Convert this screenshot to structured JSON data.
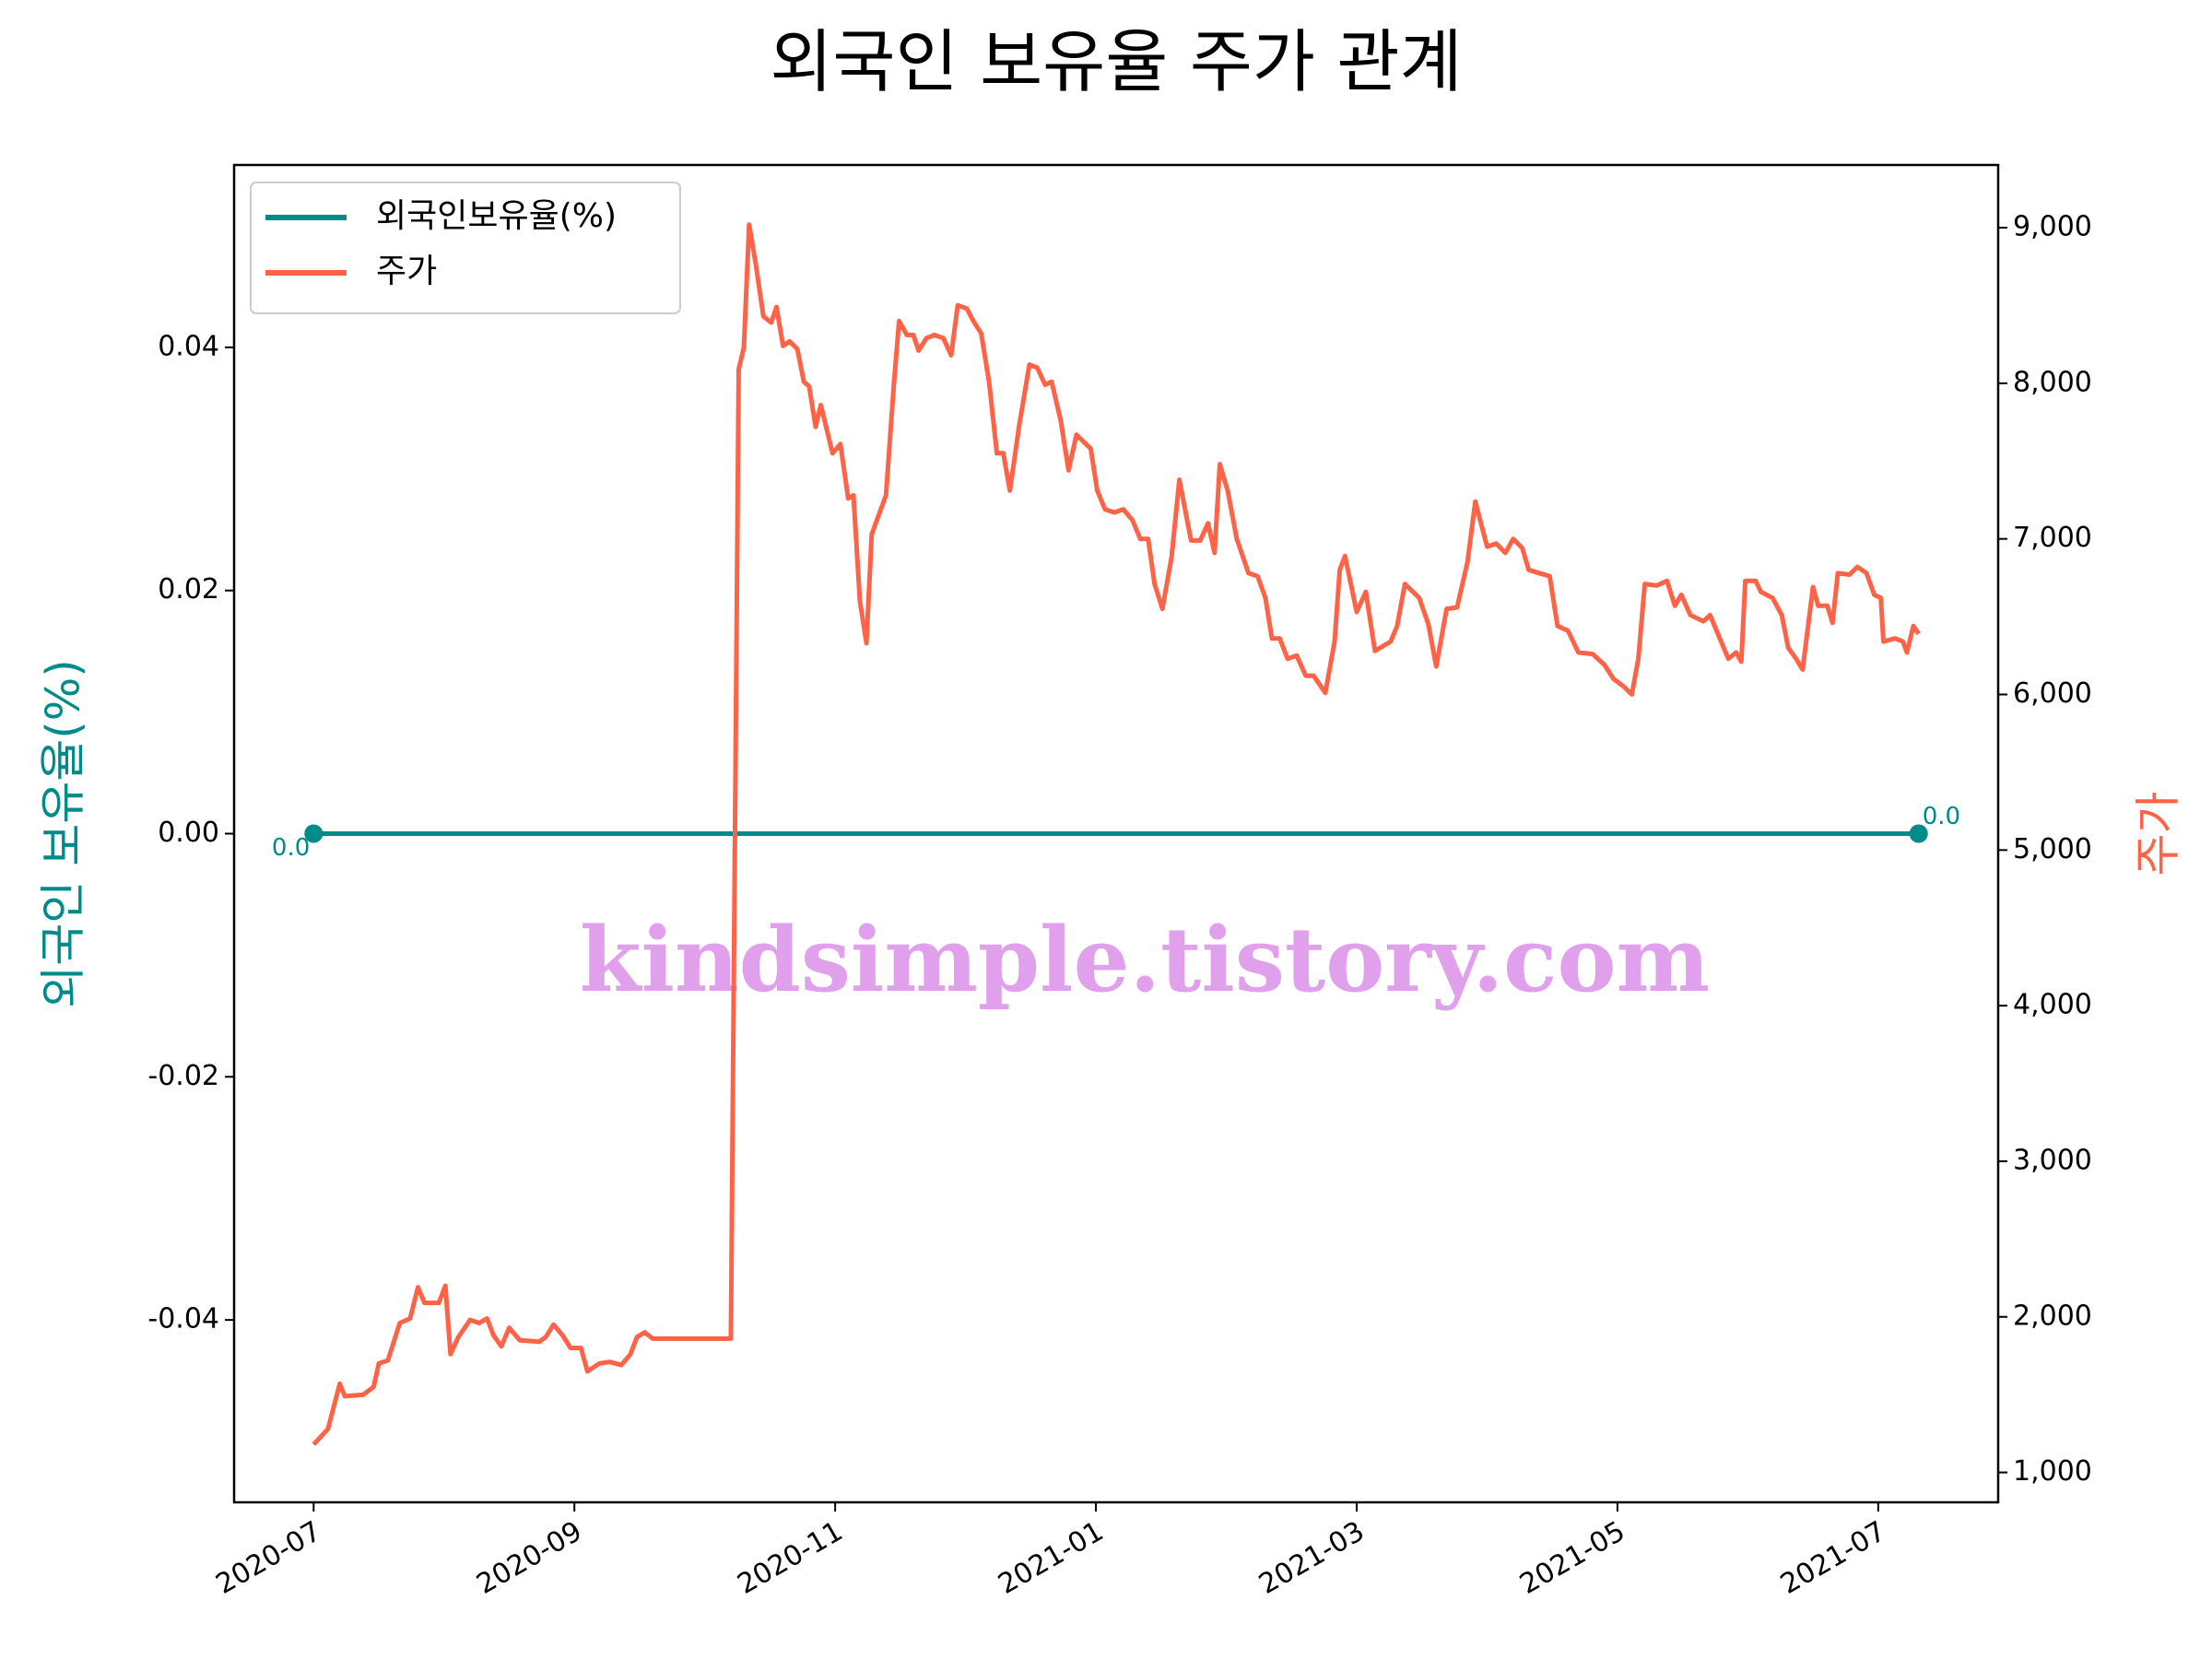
{
  "chart_data": {
    "type": "line",
    "title": "외국인 보유율 주가 관계",
    "watermark": "kindsimple.tistory.com",
    "ylabel": "외국인 보유율(%)",
    "y2label": "주가",
    "legend": "upper left",
    "xlim": [
      -0.61,
      12.92
    ],
    "xticks": [
      {
        "value": 0,
        "label": "2020-07"
      },
      {
        "value": 2,
        "label": "2020-09"
      },
      {
        "value": 4,
        "label": "2020-11"
      },
      {
        "value": 6,
        "label": "2021-01"
      },
      {
        "value": 8,
        "label": "2021-03"
      },
      {
        "value": 10,
        "label": "2021-05"
      },
      {
        "value": 12,
        "label": "2021-07"
      }
    ],
    "ylim": [
      -0.055,
      0.055
    ],
    "yticks": [
      {
        "value": -0.04,
        "label": "-0.04"
      },
      {
        "value": -0.02,
        "label": "-0.02"
      },
      {
        "value": 0,
        "label": "0.00"
      },
      0.02,
      0.04
    ],
    "y2lim": [
      808,
      9403
    ],
    "y2ticks": [
      {
        "value": 1000,
        "label": "1,000"
      },
      {
        "value": 2000,
        "label": "2,000"
      },
      {
        "value": 3000,
        "label": "3,000"
      },
      {
        "value": 4000,
        "label": "4,000"
      },
      {
        "value": 5000,
        "label": "5,000"
      },
      {
        "value": 6000,
        "label": "6,000"
      },
      {
        "value": 7000,
        "label": "7,000"
      },
      {
        "value": 8000,
        "label": "8,000"
      },
      {
        "value": 9000,
        "label": "9,000"
      }
    ],
    "series": [
      {
        "name": "외국인보유율(%)",
        "color": "#008b8b",
        "markers": true,
        "x": [
          0,
          12.31
        ],
        "values": [
          0,
          0
        ],
        "value_labels": [
          "0.0",
          "0.0"
        ]
      },
      {
        "name": "주가",
        "color": "#ff6347",
        "axis": "y2",
        "x": [
          0,
          0.11,
          0.2,
          0.24,
          0.38,
          0.46,
          0.5,
          0.57,
          0.66,
          0.74,
          0.8,
          0.85,
          0.96,
          1.01,
          1.05,
          1.11,
          1.2,
          1.27,
          1.33,
          1.38,
          1.44,
          1.5,
          1.58,
          1.73,
          1.78,
          1.84,
          1.91,
          1.97,
          2.05,
          2.1,
          2.19,
          2.27,
          2.36,
          2.43,
          2.48,
          2.54,
          2.6,
          2.73,
          3.2,
          3.26,
          3.3,
          3.34,
          3.39,
          3.45,
          3.51,
          3.55,
          3.6,
          3.65,
          3.71,
          3.76,
          3.8,
          3.85,
          3.89,
          3.98,
          4.04,
          4.1,
          4.14,
          4.19,
          4.24,
          4.28,
          4.39,
          4.45,
          4.49,
          4.55,
          4.6,
          4.64,
          4.7,
          4.76,
          4.83,
          4.89,
          4.94,
          5.01,
          5.06,
          5.12,
          5.18,
          5.24,
          5.29,
          5.34,
          5.41,
          5.49,
          5.55,
          5.61,
          5.66,
          5.73,
          5.79,
          5.85,
          5.96,
          6.01,
          6.07,
          6.14,
          6.21,
          6.28,
          6.34,
          6.4,
          6.45,
          6.51,
          6.58,
          6.64,
          6.73,
          6.8,
          6.86,
          6.91,
          6.95,
          7.01,
          7.08,
          7.17,
          7.24,
          7.3,
          7.35,
          7.41,
          7.47,
          7.54,
          7.61,
          7.67,
          7.76,
          7.83,
          7.87,
          7.91,
          8,
          8.07,
          8.14,
          8.26,
          8.31,
          8.37,
          8.48,
          8.55,
          8.61,
          8.69,
          8.77,
          8.85,
          8.91,
          9,
          9.07,
          9.14,
          9.2,
          9.27,
          9.32,
          9.4,
          9.48,
          9.54,
          9.62,
          9.7,
          9.81,
          9.9,
          9.97,
          10.05,
          10.11,
          10.16,
          10.21,
          10.3,
          10.38,
          10.44,
          10.49,
          10.56,
          10.66,
          10.71,
          10.8,
          10.85,
          10.91,
          10.95,
          10.98,
          11.06,
          11.1,
          11.19,
          11.26,
          11.31,
          11.37,
          11.42,
          11.5,
          11.54,
          11.61,
          11.65,
          11.69,
          11.78,
          11.84,
          11.91,
          11.97,
          12.02,
          12.04,
          12.13,
          12.19,
          12.22,
          12.27,
          12.31
        ],
        "values": [
          1180,
          1280,
          1570,
          1490,
          1500,
          1550,
          1700,
          1720,
          1960,
          1990,
          2190,
          2090,
          2090,
          2200,
          1760,
          1870,
          1980,
          1960,
          1990,
          1880,
          1810,
          1930,
          1850,
          1840,
          1870,
          1950,
          1880,
          1800,
          1800,
          1650,
          1700,
          1710,
          1690,
          1760,
          1870,
          1900,
          1860,
          1860,
          1860,
          8090,
          8230,
          9020,
          8770,
          8430,
          8390,
          8490,
          8240,
          8270,
          8220,
          8010,
          7980,
          7720,
          7860,
          7550,
          7610,
          7260,
          7280,
          6600,
          6330,
          7030,
          7280,
          7990,
          8400,
          8310,
          8310,
          8210,
          8290,
          8310,
          8290,
          8180,
          8500,
          8480,
          8400,
          8320,
          8010,
          7550,
          7550,
          7310,
          7720,
          8120,
          8100,
          7990,
          8010,
          7760,
          7440,
          7670,
          7580,
          7310,
          7190,
          7170,
          7190,
          7120,
          7000,
          7000,
          6710,
          6550,
          6880,
          7380,
          6990,
          6990,
          7100,
          6910,
          7480,
          7310,
          7000,
          6780,
          6760,
          6620,
          6360,
          6360,
          6230,
          6250,
          6120,
          6120,
          6010,
          6340,
          6800,
          6890,
          6530,
          6660,
          6280,
          6340,
          6440,
          6710,
          6620,
          6450,
          6180,
          6550,
          6560,
          6850,
          7240,
          6950,
          6970,
          6910,
          7000,
          6940,
          6800,
          6780,
          6760,
          6440,
          6410,
          6270,
          6260,
          6190,
          6100,
          6050,
          6000,
          6230,
          6710,
          6700,
          6730,
          6570,
          6640,
          6510,
          6470,
          6510,
          6330,
          6230,
          6270,
          6210,
          6730,
          6730,
          6660,
          6620,
          6510,
          6300,
          6230,
          6160,
          6690,
          6570,
          6570,
          6460,
          6780,
          6770,
          6820,
          6780,
          6640,
          6620,
          6340,
          6360,
          6340,
          6270,
          6440,
          6390
        ]
      }
    ]
  }
}
